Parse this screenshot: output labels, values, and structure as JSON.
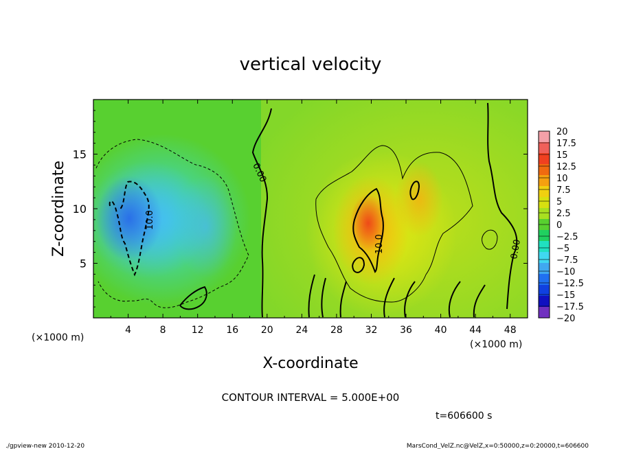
{
  "chart_data": {
    "type": "heatmap",
    "title": "vertical velocity",
    "xlabel": "X-coordinate",
    "ylabel": "Z-coordinate",
    "xlim": [
      0,
      50
    ],
    "ylim": [
      0,
      20
    ],
    "x_unit": "(×1000 m)",
    "y_unit": "(×1000 m)",
    "x_ticks": [
      "4",
      "8",
      "12",
      "16",
      "20",
      "24",
      "28",
      "32",
      "36",
      "40",
      "44",
      "48"
    ],
    "y_ticks": [
      "5",
      "10",
      "15"
    ],
    "contour_interval_text": "CONTOUR INTERVAL = 5.000E+00",
    "time_text": "t=606600 s",
    "contour_labels": [
      "10.0",
      "0.00",
      "10.0",
      "0.00"
    ],
    "colorbar": {
      "levels": [
        "20",
        "17.5",
        "15",
        "12.5",
        "10",
        "7.5",
        "5",
        "2.5",
        "0",
        "−2.5",
        "−5",
        "−7.5",
        "−10",
        "−12.5",
        "−15",
        "−17.5",
        "−20"
      ],
      "colors": [
        "#f4a0a8",
        "#f0605a",
        "#f04020",
        "#f06a10",
        "#f5a010",
        "#f0d010",
        "#d8e010",
        "#a8e020",
        "#58d030",
        "#20d060",
        "#20e0c0",
        "#40d8f0",
        "#40a8f0",
        "#2070f0",
        "#1040e0",
        "#1010c0",
        "#7030c0"
      ]
    },
    "features": [
      {
        "kind": "downdraft",
        "x": 5,
        "z": 8.5,
        "peak": -12
      },
      {
        "kind": "updraft",
        "x": 31.5,
        "z": 8,
        "peak": 13
      },
      {
        "kind": "updraft",
        "x": 37.5,
        "z": 11.5,
        "peak": 9
      }
    ]
  },
  "footer": {
    "left": "./gpview-new   2010-12-20",
    "right": "MarsCond_VelZ.nc@VelZ,x=0:50000,z=0:20000,t=606600"
  }
}
